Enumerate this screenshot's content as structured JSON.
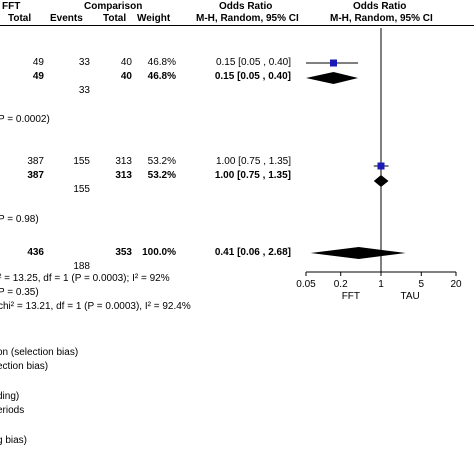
{
  "header": {
    "left_group": "FFT",
    "comparison_group": "Comparison",
    "odds_ratio_col": "Odds Ratio",
    "odds_ratio_plot": "Odds Ratio",
    "col_total_1": "Total",
    "col_events": "Events",
    "col_total_2": "Total",
    "col_weight": "Weight",
    "col_method": "M-H, Random, 95% CI",
    "col_method_plot": "M-H, Random, 95% CI"
  },
  "rows": [
    {
      "id": "s1-study",
      "bold": false,
      "total1": "49",
      "events2": "33",
      "total2": "40",
      "weight": "46.8%",
      "ci": "0.15 [0.05 , 0.40]"
    },
    {
      "id": "s1-subtotal",
      "bold": true,
      "total1": "49",
      "events2": "",
      "total2": "40",
      "weight": "46.8%",
      "ci": "0.15 [0.05 , 0.40]"
    },
    {
      "id": "s1-events",
      "bold": false,
      "total1": "",
      "events2": "33",
      "total2": "",
      "weight": "",
      "ci": ""
    },
    {
      "id": "s2-study",
      "bold": false,
      "total1": "387",
      "events2": "155",
      "total2": "313",
      "weight": "53.2%",
      "ci": "1.00 [0.75 , 1.35]"
    },
    {
      "id": "s2-subtotal",
      "bold": true,
      "total1": "387",
      "events2": "",
      "total2": "313",
      "weight": "53.2%",
      "ci": "1.00 [0.75 , 1.35]"
    },
    {
      "id": "s2-events",
      "bold": false,
      "total1": "",
      "events2": "155",
      "total2": "",
      "weight": "",
      "ci": ""
    },
    {
      "id": "overall",
      "bold": true,
      "total1": "436",
      "events2": "",
      "total2": "353",
      "weight": "100.0%",
      "ci": "0.41 [0.06 , 2.68]"
    },
    {
      "id": "overall-events",
      "bold": false,
      "total1": "",
      "events2": "188",
      "total2": "",
      "weight": "",
      "ci": ""
    }
  ],
  "notes": {
    "s1_effect": "P = 0.0002)",
    "s2_effect": "P = 0.98)",
    "heterogeneity": "² = 13.25, df = 1 (P = 0.0003); I² = 92%",
    "overall_effect": "P = 0.35)",
    "subgroup_diff": "chi² = 13.21, df = 1 (P = 0.0003), I² = 92.4%"
  },
  "risk_of_bias": [
    "on (selection bias)",
    "ection bias)",
    "ding)",
    "eriods",
    "g bias)"
  ],
  "chart_data": {
    "type": "forest",
    "scale": "log",
    "xlim": [
      0.05,
      20
    ],
    "tick_labels": [
      "0.05",
      "0.2",
      "1",
      "5",
      "20"
    ],
    "tick_values": [
      0.05,
      0.2,
      1,
      5,
      20
    ],
    "favours_left": "FFT",
    "favours_right": "TAU",
    "null_line": 1,
    "studies": [
      {
        "or": 0.15,
        "low": 0.05,
        "high": 0.4,
        "weight": 46.8
      },
      {
        "or": 1.0,
        "low": 0.75,
        "high": 1.35,
        "weight": 53.2
      }
    ],
    "pooled": [
      {
        "or": 0.15,
        "low": 0.05,
        "high": 0.4
      },
      {
        "or": 1.0,
        "low": 0.75,
        "high": 1.35
      },
      {
        "or": 0.41,
        "low": 0.06,
        "high": 2.68
      }
    ],
    "colors": {
      "square": "#1a1ab8",
      "line": "#000000",
      "diamond": "#000000"
    }
  }
}
